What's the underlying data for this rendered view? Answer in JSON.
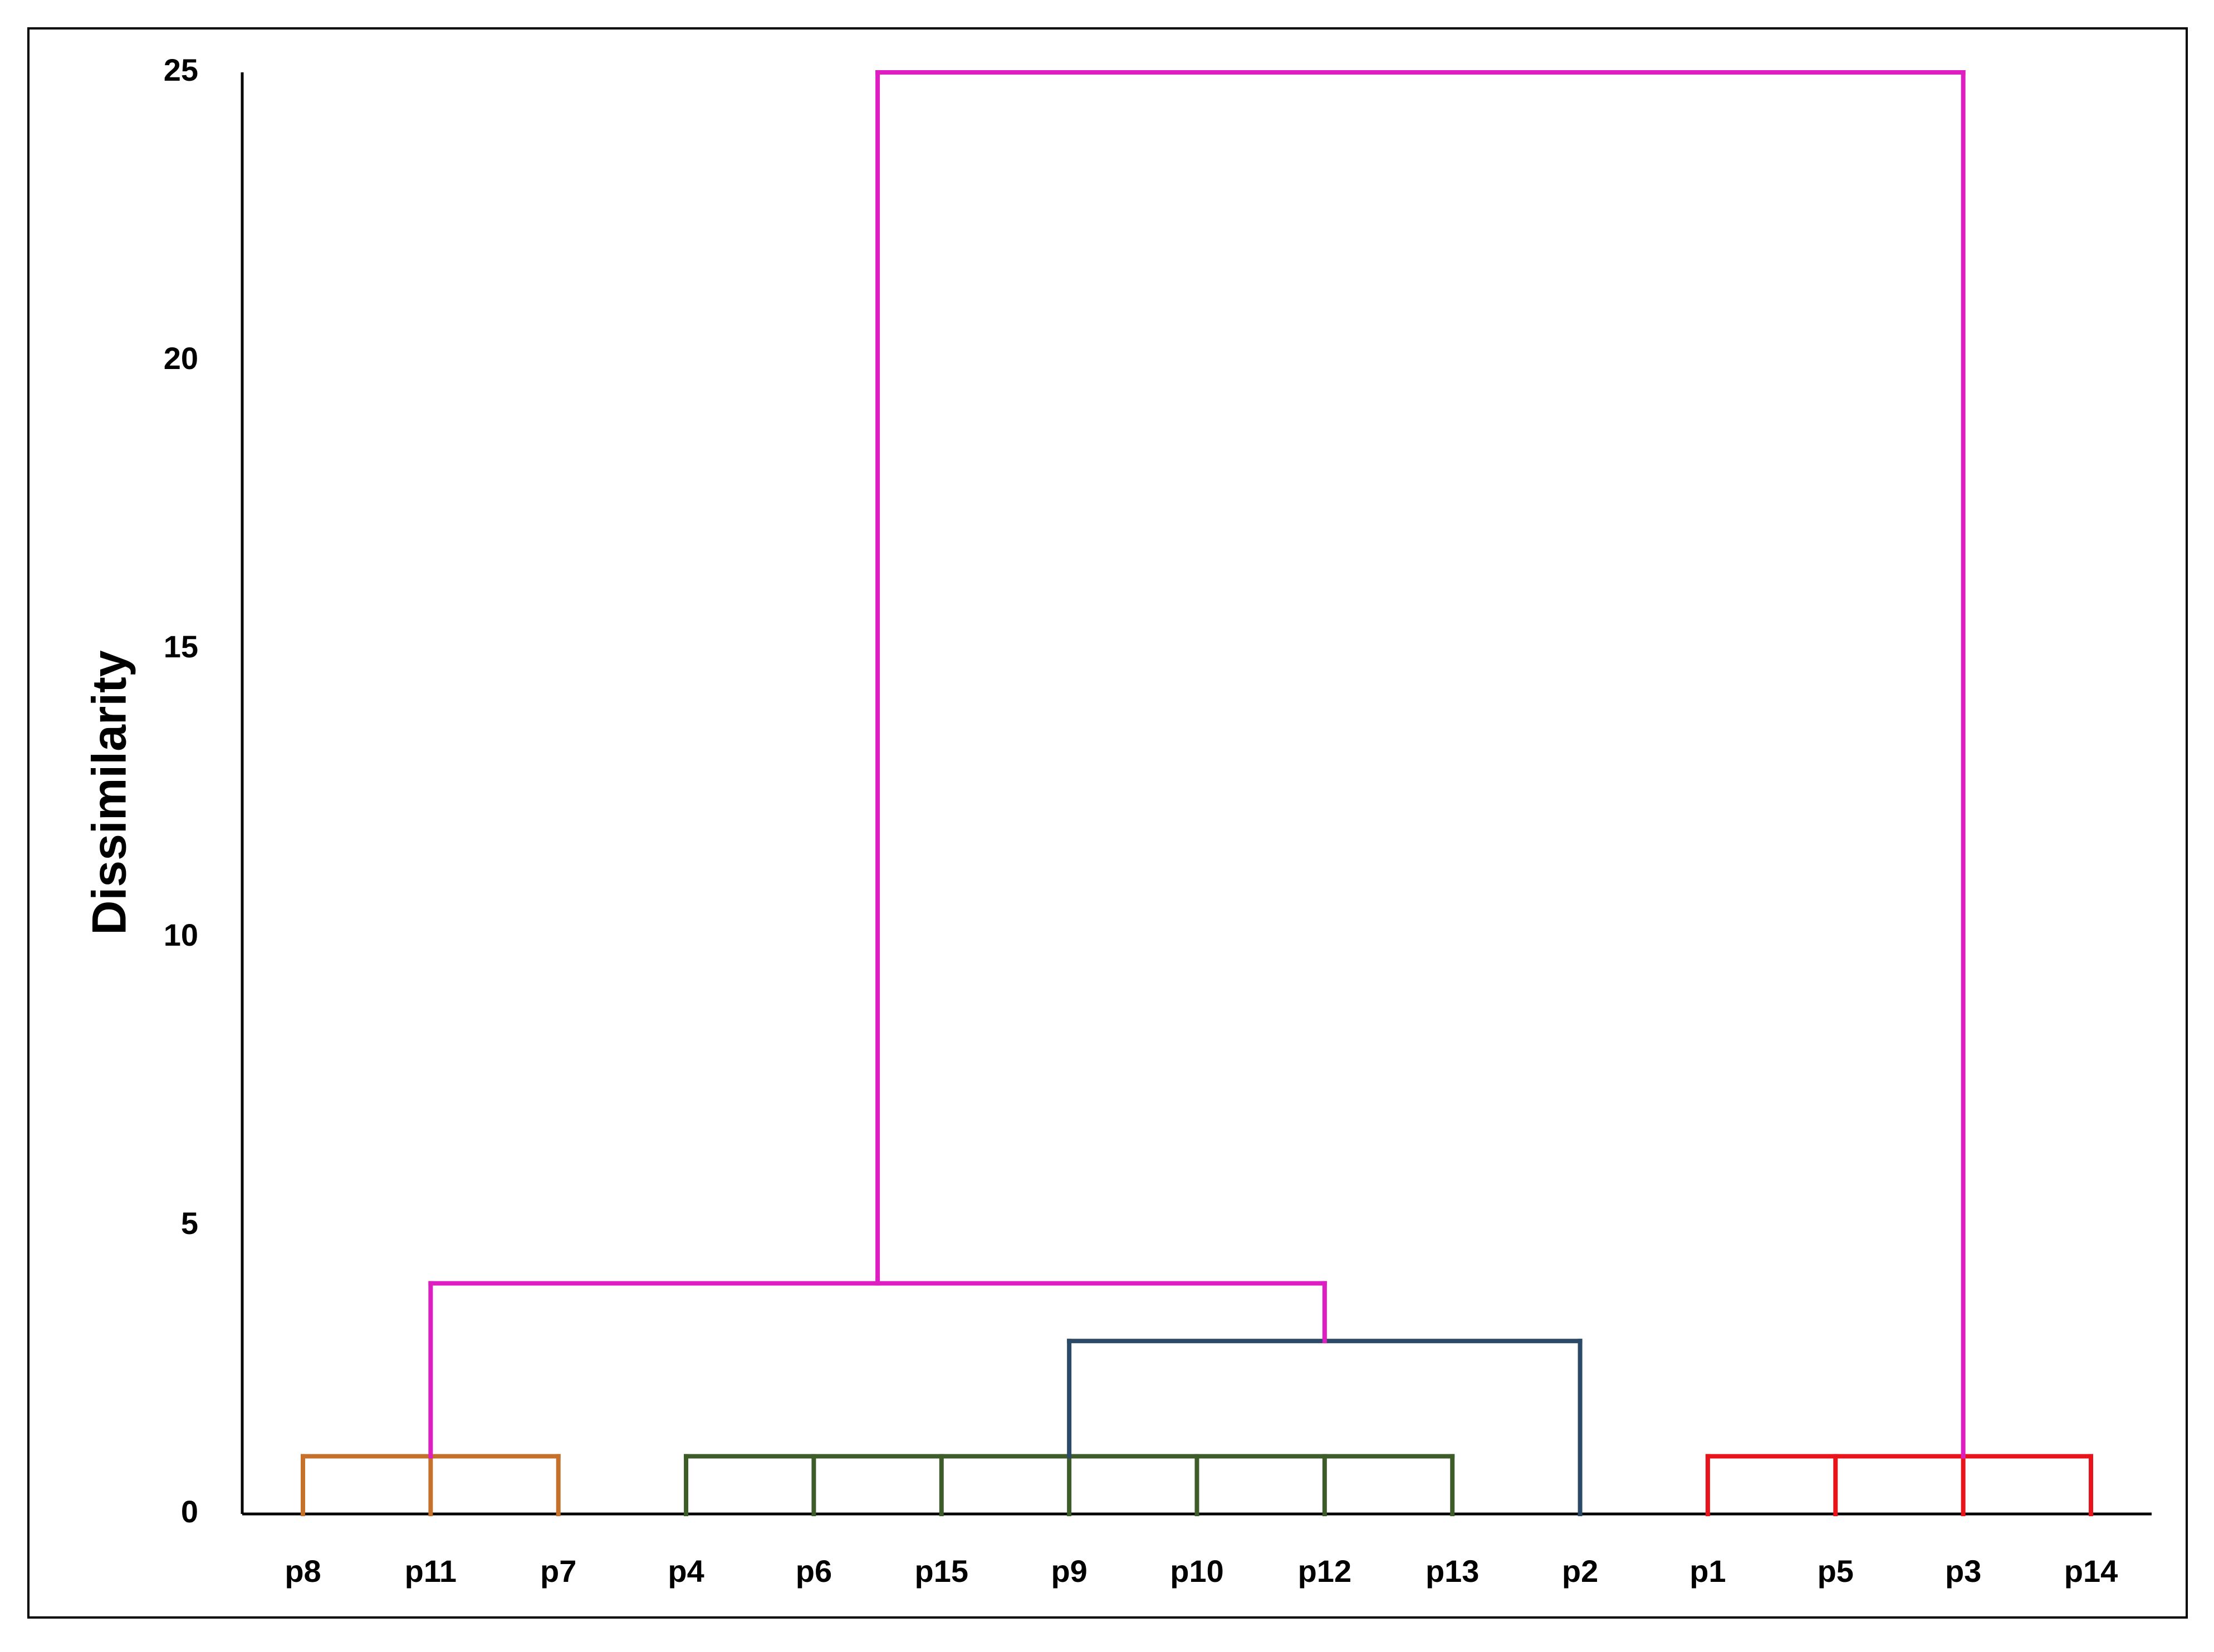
{
  "chart_data": {
    "type": "dendrogram",
    "ylabel": "Dissimilarity",
    "ylim": [
      0,
      25
    ],
    "yticks": [
      0,
      5,
      10,
      15,
      20,
      25
    ],
    "categories": [
      "p8",
      "p11",
      "p7",
      "p4",
      "p6",
      "p15",
      "p9",
      "p10",
      "p12",
      "p13",
      "p2",
      "p1",
      "p5",
      "p3",
      "p14"
    ],
    "links": [
      {
        "leaves": [
          0,
          1,
          2
        ],
        "links": [],
        "height": 1,
        "color": "#c5712c"
      },
      {
        "leaves": [
          3,
          4,
          5,
          6,
          7,
          8,
          9
        ],
        "links": [],
        "height": 1,
        "color": "#3d5c2a"
      },
      {
        "leaves": [
          11,
          12,
          13,
          14
        ],
        "links": [],
        "height": 1,
        "color": "#e8141c"
      },
      {
        "leaves": [
          10
        ],
        "links": [
          1
        ],
        "height": 3,
        "color": "#2c4a68"
      },
      {
        "leaves": [],
        "links": [
          0,
          3
        ],
        "height": 4,
        "color": "#dd1ec0"
      },
      {
        "leaves": [],
        "links": [
          4,
          2
        ],
        "height": 25,
        "color": "#dd1ec0"
      }
    ]
  }
}
